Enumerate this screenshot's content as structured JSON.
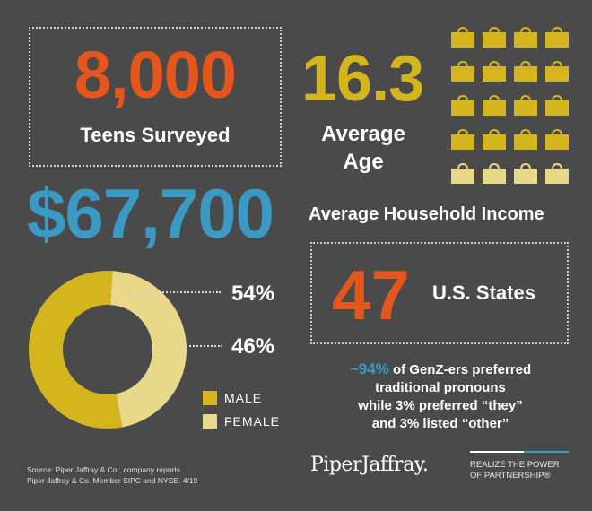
{
  "teens": {
    "number": "8,000",
    "label": "Teens Surveyed"
  },
  "age": {
    "number": "16.3",
    "label_line1": "Average",
    "label_line2": "Age",
    "icon": "shopping-bag-icon"
  },
  "income": {
    "number": "$67,700",
    "label": "Average Household Income"
  },
  "states": {
    "number": "47",
    "label": "U.S. States"
  },
  "gender": {
    "male_pct": "54%",
    "female_pct": "46%",
    "male_label": "MALE",
    "female_label": "FEMALE",
    "male_value": 54,
    "female_value": 46,
    "male_color": "#d4b51d",
    "female_color": "#e8d88a"
  },
  "pronouns": {
    "highlight": "~94%",
    "line1_rest": " of GenZ-ers preferred",
    "line2": "traditional pronouns",
    "line3": "while 3% preferred “they”",
    "line4": "and 3% listed “other”"
  },
  "footer": {
    "source_line1": "Source: Piper Jaffray & Co., company reports",
    "source_line2": "Piper Jaffray & Co. Member SIPC and NYSE. 4/19",
    "logo": "PiperJaffray.",
    "tagline_line1": "REALIZE THE POWER",
    "tagline_line2": "OF PARTNERSHIP®"
  },
  "colors": {
    "background": "#4a4a4a",
    "orange": "#e4561b",
    "yellow": "#d4b51d",
    "blue": "#3a9ac4",
    "light_yellow": "#e8d88a"
  }
}
